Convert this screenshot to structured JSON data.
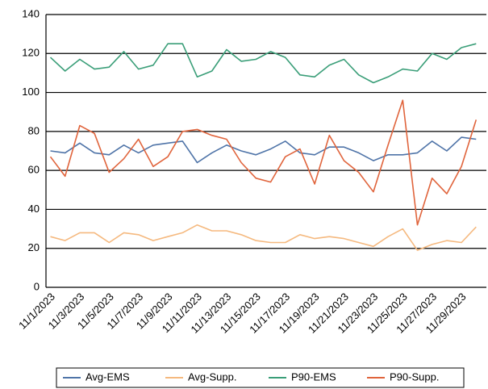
{
  "chart_data": {
    "type": "line",
    "categories": [
      "11/1/2023",
      null,
      "11/3/2023",
      null,
      "11/5/2023",
      null,
      "11/7/2023",
      null,
      "11/9/2023",
      null,
      "11/11/2023",
      null,
      "11/13/2023",
      null,
      "11/15/2023",
      null,
      "11/17/2023",
      null,
      "11/19/2023",
      null,
      "11/21/2023",
      null,
      "11/23/2023",
      null,
      "11/25/2023",
      null,
      "11/27/2023",
      null,
      "11/29/2023",
      null
    ],
    "series": [
      {
        "name": "Avg-EMS",
        "color": "#4f74a8",
        "values": [
          70,
          69,
          74,
          69,
          68,
          73,
          69,
          73,
          74,
          75,
          64,
          69,
          73,
          70,
          68,
          71,
          75,
          69,
          68,
          72,
          72,
          69,
          65,
          68,
          68,
          69,
          75,
          70,
          77,
          76
        ]
      },
      {
        "name": "Avg-Supp.",
        "color": "#f5b97f",
        "values": [
          26,
          24,
          28,
          28,
          23,
          28,
          27,
          24,
          26,
          28,
          32,
          29,
          29,
          27,
          24,
          23,
          23,
          27,
          25,
          26,
          25,
          23,
          21,
          26,
          30,
          19,
          22,
          24,
          23,
          31
        ]
      },
      {
        "name": "P90-EMS",
        "color": "#3a9e78",
        "values": [
          118,
          111,
          117,
          112,
          113,
          121,
          112,
          114,
          125,
          125,
          108,
          111,
          122,
          116,
          117,
          121,
          118,
          109,
          108,
          114,
          117,
          109,
          105,
          108,
          112,
          111,
          120,
          117,
          123,
          125
        ]
      },
      {
        "name": "P90-Supp.",
        "color": "#e0643c",
        "values": [
          67,
          57,
          83,
          79,
          59,
          66,
          76,
          62,
          67,
          80,
          81,
          78,
          76,
          64,
          56,
          54,
          67,
          71,
          53,
          78,
          65,
          59,
          49,
          73,
          96,
          32,
          56,
          48,
          62,
          86
        ]
      }
    ],
    "ylim": [
      0,
      140
    ],
    "yticks": [
      0,
      20,
      40,
      60,
      80,
      100,
      120,
      140
    ],
    "grid": true
  }
}
